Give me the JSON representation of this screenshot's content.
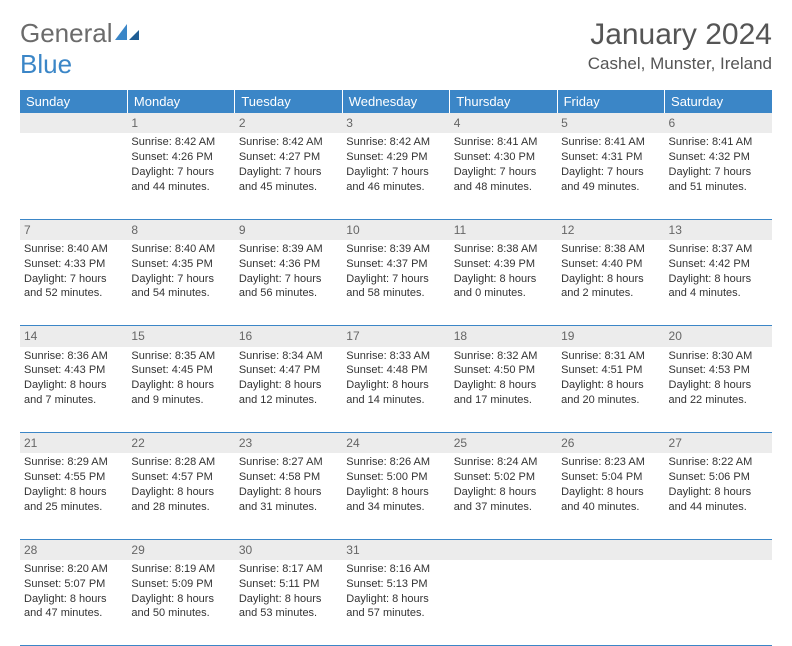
{
  "brand": {
    "word1": "General",
    "word2": "Blue"
  },
  "title": {
    "month": "January 2024",
    "location": "Cashel, Munster, Ireland"
  },
  "colors": {
    "header_bg": "#3b86c7",
    "header_text": "#ffffff",
    "daynum_bg": "#ececec",
    "daynum_text": "#666666",
    "body_text": "#333333",
    "divider": "#3b86c7",
    "brand_gray": "#6b6b6b",
    "brand_blue": "#3b86c7"
  },
  "weekdays": [
    "Sunday",
    "Monday",
    "Tuesday",
    "Wednesday",
    "Thursday",
    "Friday",
    "Saturday"
  ],
  "weeks": [
    {
      "nums": [
        "",
        "1",
        "2",
        "3",
        "4",
        "5",
        "6"
      ],
      "cells": [
        null,
        {
          "sunrise": "Sunrise: 8:42 AM",
          "sunset": "Sunset: 4:26 PM",
          "day1": "Daylight: 7 hours",
          "day2": "and 44 minutes."
        },
        {
          "sunrise": "Sunrise: 8:42 AM",
          "sunset": "Sunset: 4:27 PM",
          "day1": "Daylight: 7 hours",
          "day2": "and 45 minutes."
        },
        {
          "sunrise": "Sunrise: 8:42 AM",
          "sunset": "Sunset: 4:29 PM",
          "day1": "Daylight: 7 hours",
          "day2": "and 46 minutes."
        },
        {
          "sunrise": "Sunrise: 8:41 AM",
          "sunset": "Sunset: 4:30 PM",
          "day1": "Daylight: 7 hours",
          "day2": "and 48 minutes."
        },
        {
          "sunrise": "Sunrise: 8:41 AM",
          "sunset": "Sunset: 4:31 PM",
          "day1": "Daylight: 7 hours",
          "day2": "and 49 minutes."
        },
        {
          "sunrise": "Sunrise: 8:41 AM",
          "sunset": "Sunset: 4:32 PM",
          "day1": "Daylight: 7 hours",
          "day2": "and 51 minutes."
        }
      ]
    },
    {
      "nums": [
        "7",
        "8",
        "9",
        "10",
        "11",
        "12",
        "13"
      ],
      "cells": [
        {
          "sunrise": "Sunrise: 8:40 AM",
          "sunset": "Sunset: 4:33 PM",
          "day1": "Daylight: 7 hours",
          "day2": "and 52 minutes."
        },
        {
          "sunrise": "Sunrise: 8:40 AM",
          "sunset": "Sunset: 4:35 PM",
          "day1": "Daylight: 7 hours",
          "day2": "and 54 minutes."
        },
        {
          "sunrise": "Sunrise: 8:39 AM",
          "sunset": "Sunset: 4:36 PM",
          "day1": "Daylight: 7 hours",
          "day2": "and 56 minutes."
        },
        {
          "sunrise": "Sunrise: 8:39 AM",
          "sunset": "Sunset: 4:37 PM",
          "day1": "Daylight: 7 hours",
          "day2": "and 58 minutes."
        },
        {
          "sunrise": "Sunrise: 8:38 AM",
          "sunset": "Sunset: 4:39 PM",
          "day1": "Daylight: 8 hours",
          "day2": "and 0 minutes."
        },
        {
          "sunrise": "Sunrise: 8:38 AM",
          "sunset": "Sunset: 4:40 PM",
          "day1": "Daylight: 8 hours",
          "day2": "and 2 minutes."
        },
        {
          "sunrise": "Sunrise: 8:37 AM",
          "sunset": "Sunset: 4:42 PM",
          "day1": "Daylight: 8 hours",
          "day2": "and 4 minutes."
        }
      ]
    },
    {
      "nums": [
        "14",
        "15",
        "16",
        "17",
        "18",
        "19",
        "20"
      ],
      "cells": [
        {
          "sunrise": "Sunrise: 8:36 AM",
          "sunset": "Sunset: 4:43 PM",
          "day1": "Daylight: 8 hours",
          "day2": "and 7 minutes."
        },
        {
          "sunrise": "Sunrise: 8:35 AM",
          "sunset": "Sunset: 4:45 PM",
          "day1": "Daylight: 8 hours",
          "day2": "and 9 minutes."
        },
        {
          "sunrise": "Sunrise: 8:34 AM",
          "sunset": "Sunset: 4:47 PM",
          "day1": "Daylight: 8 hours",
          "day2": "and 12 minutes."
        },
        {
          "sunrise": "Sunrise: 8:33 AM",
          "sunset": "Sunset: 4:48 PM",
          "day1": "Daylight: 8 hours",
          "day2": "and 14 minutes."
        },
        {
          "sunrise": "Sunrise: 8:32 AM",
          "sunset": "Sunset: 4:50 PM",
          "day1": "Daylight: 8 hours",
          "day2": "and 17 minutes."
        },
        {
          "sunrise": "Sunrise: 8:31 AM",
          "sunset": "Sunset: 4:51 PM",
          "day1": "Daylight: 8 hours",
          "day2": "and 20 minutes."
        },
        {
          "sunrise": "Sunrise: 8:30 AM",
          "sunset": "Sunset: 4:53 PM",
          "day1": "Daylight: 8 hours",
          "day2": "and 22 minutes."
        }
      ]
    },
    {
      "nums": [
        "21",
        "22",
        "23",
        "24",
        "25",
        "26",
        "27"
      ],
      "cells": [
        {
          "sunrise": "Sunrise: 8:29 AM",
          "sunset": "Sunset: 4:55 PM",
          "day1": "Daylight: 8 hours",
          "day2": "and 25 minutes."
        },
        {
          "sunrise": "Sunrise: 8:28 AM",
          "sunset": "Sunset: 4:57 PM",
          "day1": "Daylight: 8 hours",
          "day2": "and 28 minutes."
        },
        {
          "sunrise": "Sunrise: 8:27 AM",
          "sunset": "Sunset: 4:58 PM",
          "day1": "Daylight: 8 hours",
          "day2": "and 31 minutes."
        },
        {
          "sunrise": "Sunrise: 8:26 AM",
          "sunset": "Sunset: 5:00 PM",
          "day1": "Daylight: 8 hours",
          "day2": "and 34 minutes."
        },
        {
          "sunrise": "Sunrise: 8:24 AM",
          "sunset": "Sunset: 5:02 PM",
          "day1": "Daylight: 8 hours",
          "day2": "and 37 minutes."
        },
        {
          "sunrise": "Sunrise: 8:23 AM",
          "sunset": "Sunset: 5:04 PM",
          "day1": "Daylight: 8 hours",
          "day2": "and 40 minutes."
        },
        {
          "sunrise": "Sunrise: 8:22 AM",
          "sunset": "Sunset: 5:06 PM",
          "day1": "Daylight: 8 hours",
          "day2": "and 44 minutes."
        }
      ]
    },
    {
      "nums": [
        "28",
        "29",
        "30",
        "31",
        "",
        "",
        ""
      ],
      "cells": [
        {
          "sunrise": "Sunrise: 8:20 AM",
          "sunset": "Sunset: 5:07 PM",
          "day1": "Daylight: 8 hours",
          "day2": "and 47 minutes."
        },
        {
          "sunrise": "Sunrise: 8:19 AM",
          "sunset": "Sunset: 5:09 PM",
          "day1": "Daylight: 8 hours",
          "day2": "and 50 minutes."
        },
        {
          "sunrise": "Sunrise: 8:17 AM",
          "sunset": "Sunset: 5:11 PM",
          "day1": "Daylight: 8 hours",
          "day2": "and 53 minutes."
        },
        {
          "sunrise": "Sunrise: 8:16 AM",
          "sunset": "Sunset: 5:13 PM",
          "day1": "Daylight: 8 hours",
          "day2": "and 57 minutes."
        },
        null,
        null,
        null
      ]
    }
  ]
}
